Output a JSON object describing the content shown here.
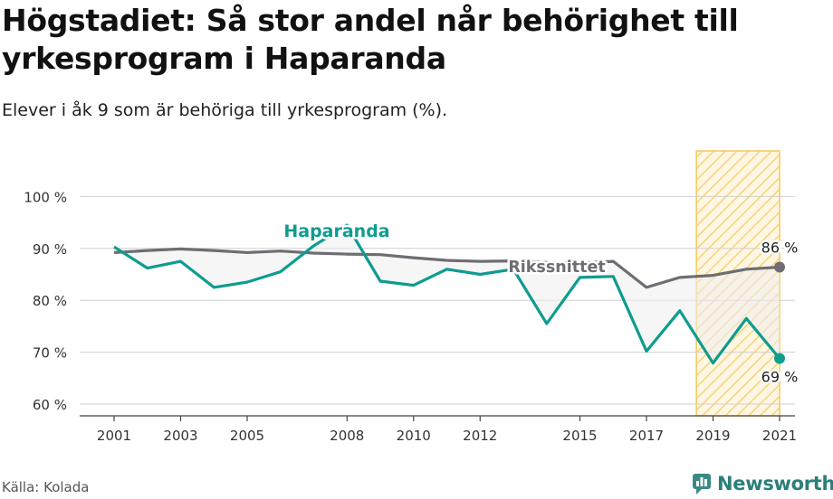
{
  "header": {
    "title": "Högstadiet: Så stor andel når behörighet till yrkesprogram i Haparanda",
    "subtitle": "Elever i åk 9 som är behöriga till yrkesprogram (%)."
  },
  "footer": {
    "source": "Källa: Kolada",
    "brand": "Newsworthy"
  },
  "chart_data": {
    "type": "line",
    "x": [
      2001,
      2002,
      2003,
      2004,
      2005,
      2006,
      2007,
      2008,
      2009,
      2010,
      2011,
      2012,
      2013,
      2014,
      2015,
      2016,
      2017,
      2018,
      2019,
      2020,
      2021
    ],
    "x_tick_labels": [
      "2001",
      "2003",
      "2005",
      "2008",
      "2010",
      "2012",
      "2015",
      "2017",
      "2019",
      "2021"
    ],
    "y_tick_labels": [
      "60 %",
      "70 %",
      "80 %",
      "90 %",
      "100 %"
    ],
    "ylim": [
      58,
      106
    ],
    "y_ticks": [
      60,
      70,
      80,
      90,
      100
    ],
    "grid": true,
    "highlight_range": [
      2018.5,
      2021
    ],
    "series": [
      {
        "name": "Haparanda",
        "color": "#0e9c8f",
        "values": [
          90.3,
          86.2,
          87.5,
          82.5,
          83.5,
          85.5,
          90.5,
          94.5,
          83.7,
          82.9,
          86.0,
          85.0,
          86.0,
          75.5,
          84.4,
          84.6,
          70.2,
          78.0,
          67.9,
          76.5,
          68.8
        ],
        "end_label": "69 %"
      },
      {
        "name": "Rikssnittet",
        "color": "#6d6d73",
        "values": [
          89.2,
          89.6,
          89.9,
          89.6,
          89.2,
          89.5,
          89.1,
          88.9,
          88.8,
          88.2,
          87.7,
          87.5,
          87.6,
          87.3,
          87.2,
          87.5,
          82.5,
          84.4,
          84.8,
          86.0,
          86.4
        ],
        "end_label": "86 %"
      }
    ]
  }
}
